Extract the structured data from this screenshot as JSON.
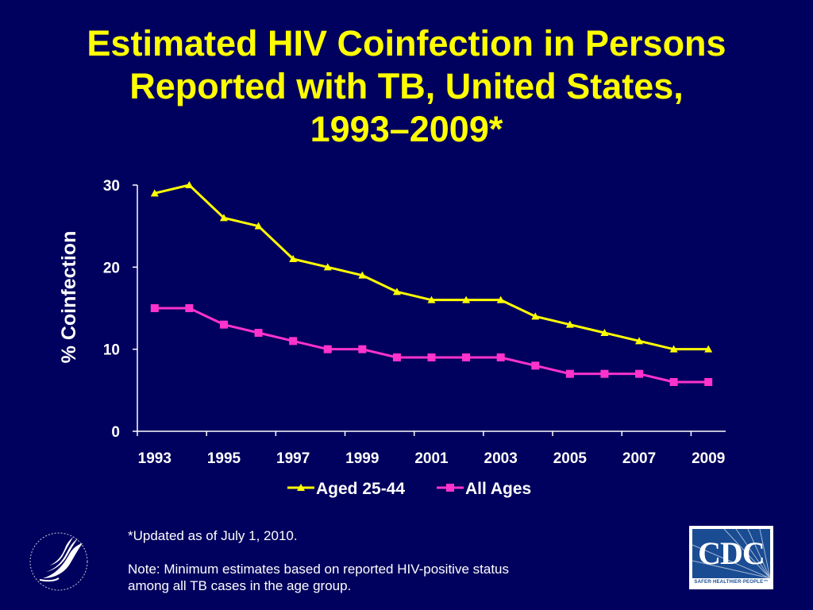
{
  "title": {
    "line1": "Estimated HIV Coinfection in Persons",
    "line2": "Reported with TB, United States,",
    "line3": "1993–2009*"
  },
  "chart_data": {
    "type": "line",
    "title": "Estimated HIV Coinfection in Persons Reported with TB, United States, 1993–2009*",
    "xlabel": "",
    "ylabel": "% Coinfection",
    "x": [
      1993,
      1994,
      1995,
      1996,
      1997,
      1998,
      1999,
      2000,
      2001,
      2002,
      2003,
      2004,
      2005,
      2006,
      2007,
      2008,
      2009
    ],
    "x_tick_labels": [
      "1993",
      "1995",
      "1997",
      "1999",
      "2001",
      "2003",
      "2005",
      "2007",
      "2009"
    ],
    "y_tick_labels": [
      "0",
      "10",
      "20",
      "30"
    ],
    "ylim": [
      0,
      30
    ],
    "grid": false,
    "legend_position": "bottom",
    "series": [
      {
        "name": "Aged 25-44",
        "color": "#ffff00",
        "marker": "triangle",
        "values": [
          29,
          30,
          26,
          25,
          21,
          20,
          19,
          17,
          16,
          16,
          16,
          14,
          13,
          12,
          11,
          10,
          10
        ]
      },
      {
        "name": "All Ages",
        "color": "#ff33cc",
        "marker": "square",
        "values": [
          15,
          15,
          13,
          12,
          11,
          10,
          10,
          9,
          9,
          9,
          9,
          8,
          7,
          7,
          7,
          6,
          6
        ]
      }
    ]
  },
  "footnote": {
    "updated": "*Updated as of  July 1, 2010.",
    "note_line1": "Note: Minimum estimates based on reported HIV-positive status",
    "note_line2": "among all TB cases in the age group."
  },
  "logos": {
    "hhs": "hhs-eagle-seal",
    "cdc_text": "CDC",
    "cdc_tagline": "SAFER·HEALTHIER·PEOPLE™"
  }
}
